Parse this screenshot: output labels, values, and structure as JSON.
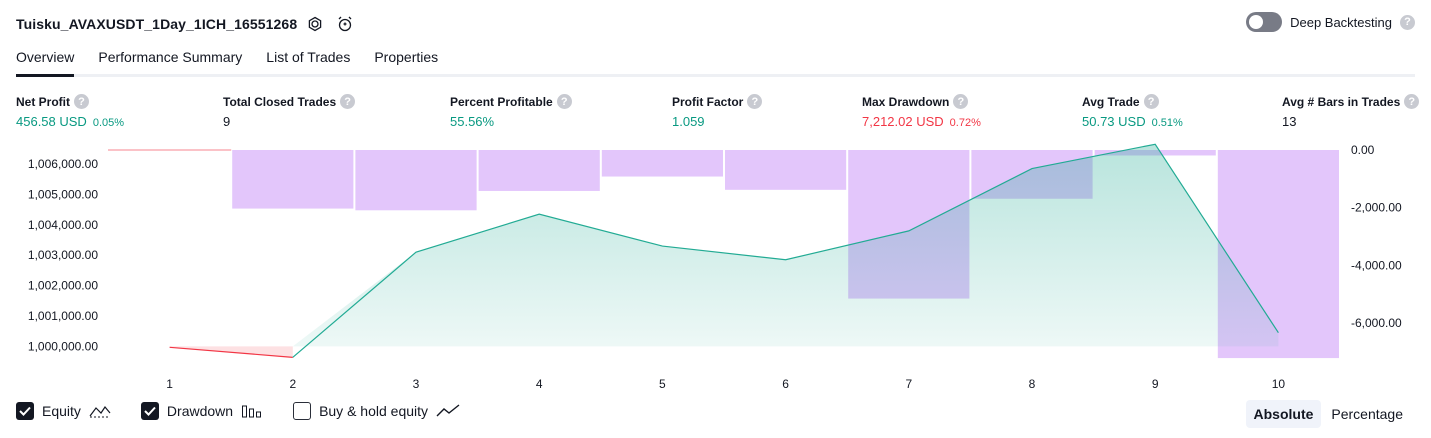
{
  "header": {
    "title": "Tuisku_AVAXUSDT_1Day_1ICH_16551268",
    "deep_backtesting_label": "Deep Backtesting",
    "help_glyph": "?"
  },
  "tabs": [
    {
      "label": "Overview",
      "active": true
    },
    {
      "label": "Performance Summary",
      "active": false
    },
    {
      "label": "List of Trades",
      "active": false
    },
    {
      "label": "Properties",
      "active": false
    }
  ],
  "metrics": [
    {
      "label": "Net Profit",
      "value": "456.58 USD",
      "pct": "0.05%",
      "color": "#089981"
    },
    {
      "label": "Total Closed Trades",
      "value": "9",
      "pct": "",
      "color": "#131722"
    },
    {
      "label": "Percent Profitable",
      "value": "55.56%",
      "pct": "",
      "color": "#089981"
    },
    {
      "label": "Profit Factor",
      "value": "1.059",
      "pct": "",
      "color": "#089981"
    },
    {
      "label": "Max Drawdown",
      "value": "7,212.02 USD",
      "pct": "0.72%",
      "color": "#f23645"
    },
    {
      "label": "Avg Trade",
      "value": "50.73 USD",
      "pct": "0.51%",
      "color": "#089981"
    },
    {
      "label": "Avg # Bars in Trades",
      "value": "13",
      "pct": "",
      "color": "#131722"
    }
  ],
  "chart_data": {
    "type": "area",
    "x": [
      1,
      2,
      3,
      4,
      5,
      6,
      7,
      8,
      9,
      10
    ],
    "left_axis": {
      "ticks": [
        "1,006,000.00",
        "1,005,000.00",
        "1,004,000.00",
        "1,003,000.00",
        "1,002,000.00",
        "1,001,000.00",
        "1,000,000.00"
      ],
      "range": [
        999700,
        1006500
      ]
    },
    "right_axis": {
      "ticks": [
        "0.00",
        "-2,000.00",
        "-4,000.00",
        "-6,000.00"
      ],
      "range": [
        -7500,
        200
      ]
    },
    "series": [
      {
        "name": "Equity",
        "type": "line",
        "values": [
          999970,
          999640,
          1003100,
          1004350,
          1003300,
          1002850,
          1003800,
          1005850,
          1006650,
          1000450
        ]
      },
      {
        "name": "Drawdown",
        "type": "bar",
        "values": [
          0,
          -2030,
          -2090,
          -1420,
          -920,
          -1380,
          -5150,
          -1690,
          -190,
          -7212
        ]
      }
    ],
    "colors": {
      "equity_up": "#22ab94",
      "equity_down": "#f23645",
      "drawdown": "#e1c3fb"
    }
  },
  "legend": [
    {
      "label": "Equity",
      "checked": true,
      "icon": "equity-line-icon"
    },
    {
      "label": "Drawdown",
      "checked": true,
      "icon": "drawdown-bars-icon"
    },
    {
      "label": "Buy & hold equity",
      "checked": false,
      "icon": "buy-hold-line-icon"
    }
  ],
  "modes": [
    {
      "label": "Absolute",
      "active": true
    },
    {
      "label": "Percentage",
      "active": false
    }
  ]
}
